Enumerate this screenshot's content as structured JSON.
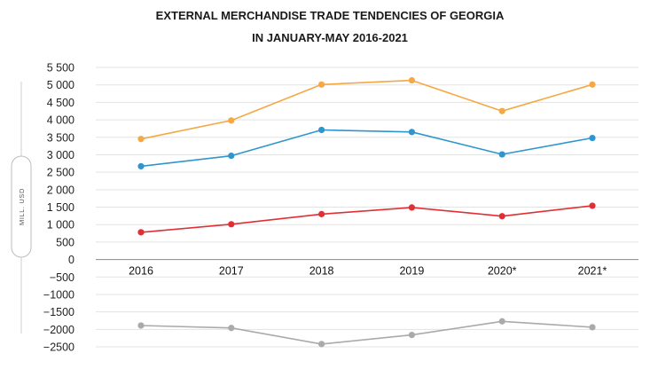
{
  "chart_data": {
    "type": "line",
    "title_lines": [
      "EXTERNAL MERCHANDISE TRADE TENDENCIES OF GEORGIA",
      "IN JANUARY-MAY 2016-2021"
    ],
    "ylabel": "MILL. USD",
    "categories": [
      "2016",
      "2017",
      "2018",
      "2019",
      "2020*",
      "2021*"
    ],
    "ylim": [
      -2500,
      5500
    ],
    "yticks": [
      5500,
      5000,
      4500,
      4000,
      3500,
      3000,
      2500,
      2000,
      1500,
      1000,
      500,
      0,
      -500,
      -1000,
      -1500,
      -2000,
      -2500
    ],
    "ytick_labels": [
      "5 500",
      "5 000",
      "4 500",
      "4 000",
      "3 500",
      "3 000",
      "2 500",
      "2 000",
      "1 500",
      "1 000",
      "500",
      "0",
      "−500",
      "−1000",
      "−1500",
      "−2000",
      "−2500"
    ],
    "grid": true,
    "series": [
      {
        "name": "orange-series",
        "color": "#f5a843",
        "values": [
          3450,
          3980,
          5010,
          5130,
          4250,
          5010
        ]
      },
      {
        "name": "blue-series",
        "color": "#2e95cf",
        "values": [
          2670,
          2970,
          3710,
          3650,
          3010,
          3480
        ]
      },
      {
        "name": "red-series",
        "color": "#e03035",
        "values": [
          780,
          1010,
          1300,
          1490,
          1240,
          1540
        ]
      },
      {
        "name": "gray-series",
        "color": "#aaaaaa",
        "values": [
          -1890,
          -1960,
          -2420,
          -2160,
          -1770,
          -1940
        ]
      }
    ]
  }
}
